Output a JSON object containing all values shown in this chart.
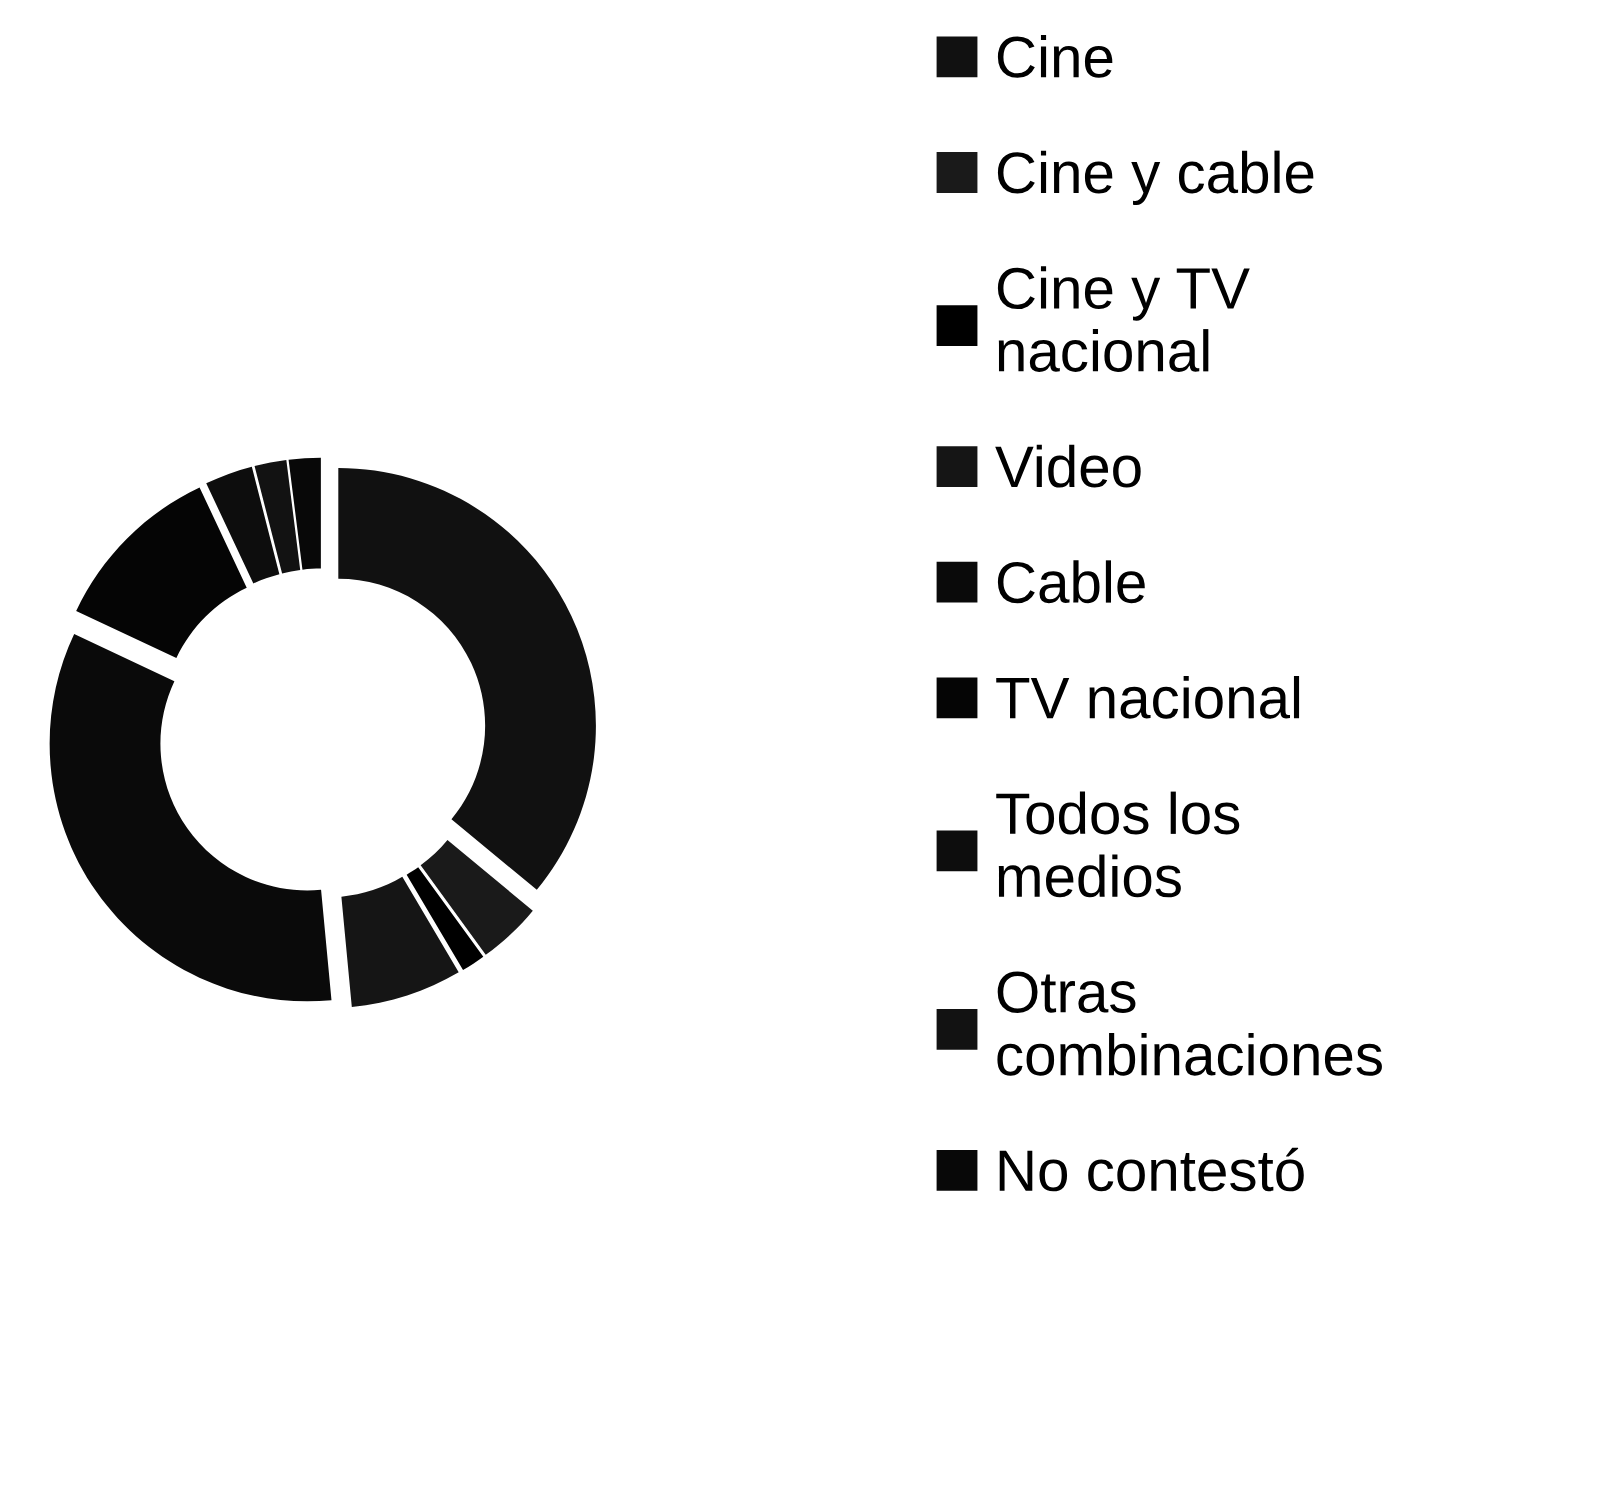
{
  "chart_data": {
    "type": "donut",
    "categories": [
      "Cine",
      "Cine y cable",
      "Cine y TV\nnacional",
      "Video",
      "Cable",
      "TV nacional",
      "Todos los\nmedios",
      "Otras\ncombinaciones",
      "No contestó"
    ],
    "values": [
      36,
      4,
      1.5,
      7,
      33.5,
      11,
      3,
      2,
      2
    ],
    "colors": [
      "#111111",
      "#1a1a1a",
      "#000000",
      "#151515",
      "#0a0a0a",
      "#050505",
      "#0d0d0d",
      "#121212",
      "#080808"
    ],
    "legend": "right"
  }
}
